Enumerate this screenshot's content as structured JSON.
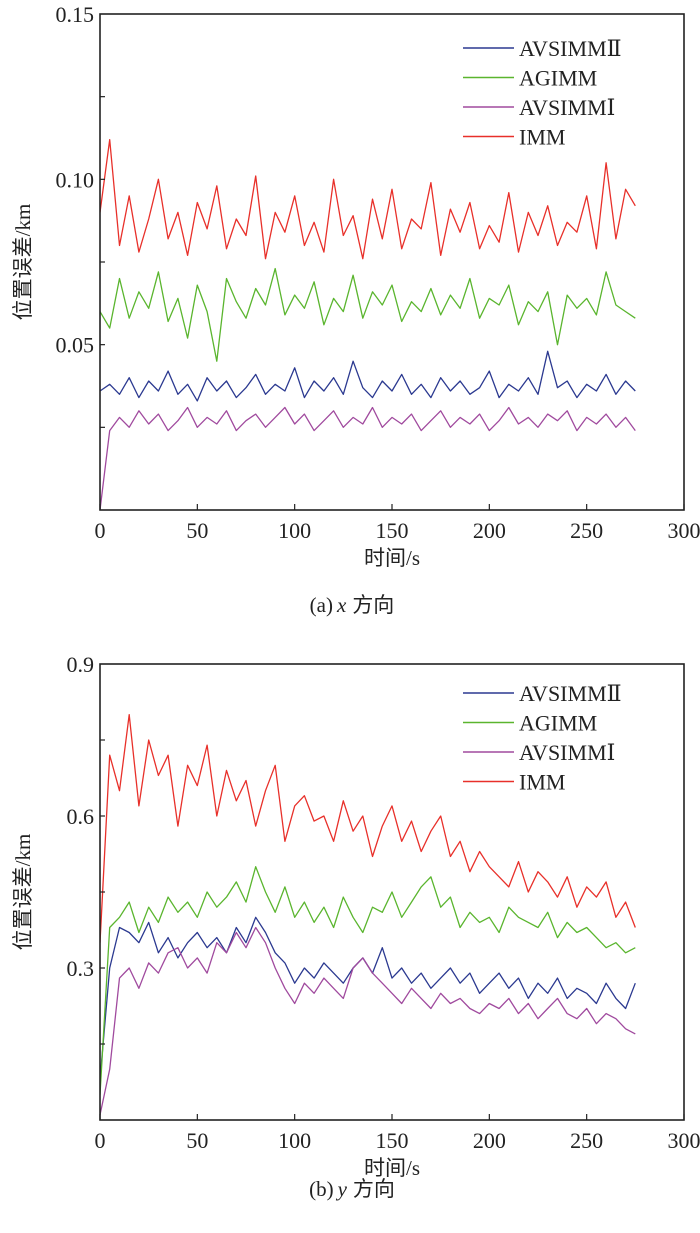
{
  "chart_data": [
    {
      "type": "line",
      "caption_prefix": "(a)",
      "caption_var": "x",
      "caption_suffix": "方向",
      "xlabel": "时间/s",
      "ylabel": "位置误差/km",
      "xlim": [
        0,
        300
      ],
      "ylim": [
        0,
        0.15
      ],
      "xticks": [
        0,
        50,
        100,
        150,
        200,
        250,
        300
      ],
      "xtick_labels": [
        "0",
        "50",
        "100",
        "150",
        "200",
        "250",
        "300"
      ],
      "yticks": [
        0.05,
        0.1,
        0.15
      ],
      "ytick_labels": [
        "0.05",
        "0.10",
        "0.15"
      ],
      "yminor_step": 0.025,
      "legend_position": "top-right",
      "x": [
        0,
        5,
        10,
        15,
        20,
        25,
        30,
        35,
        40,
        45,
        50,
        55,
        60,
        65,
        70,
        75,
        80,
        85,
        90,
        95,
        100,
        105,
        110,
        115,
        120,
        125,
        130,
        135,
        140,
        145,
        150,
        155,
        160,
        165,
        170,
        175,
        180,
        185,
        190,
        195,
        200,
        205,
        210,
        215,
        220,
        225,
        230,
        235,
        240,
        245,
        250,
        255,
        260,
        265,
        270,
        275
      ],
      "series": [
        {
          "name": "AVSIMMⅡ",
          "color": "#2b3990",
          "values": [
            0.036,
            0.038,
            0.035,
            0.04,
            0.034,
            0.039,
            0.036,
            0.042,
            0.035,
            0.038,
            0.033,
            0.04,
            0.036,
            0.039,
            0.034,
            0.037,
            0.041,
            0.035,
            0.038,
            0.036,
            0.043,
            0.034,
            0.039,
            0.036,
            0.04,
            0.035,
            0.045,
            0.037,
            0.034,
            0.039,
            0.036,
            0.041,
            0.035,
            0.038,
            0.034,
            0.04,
            0.036,
            0.039,
            0.035,
            0.037,
            0.042,
            0.034,
            0.038,
            0.036,
            0.04,
            0.035,
            0.048,
            0.037,
            0.039,
            0.034,
            0.038,
            0.036,
            0.041,
            0.035,
            0.039,
            0.036
          ]
        },
        {
          "name": "AGIMM",
          "color": "#5ab52e",
          "values": [
            0.06,
            0.055,
            0.07,
            0.058,
            0.066,
            0.061,
            0.072,
            0.057,
            0.064,
            0.052,
            0.068,
            0.06,
            0.045,
            0.07,
            0.063,
            0.058,
            0.067,
            0.062,
            0.073,
            0.059,
            0.065,
            0.061,
            0.069,
            0.056,
            0.064,
            0.06,
            0.071,
            0.058,
            0.066,
            0.062,
            0.068,
            0.057,
            0.063,
            0.06,
            0.067,
            0.059,
            0.065,
            0.061,
            0.07,
            0.058,
            0.064,
            0.062,
            0.068,
            0.056,
            0.063,
            0.06,
            0.066,
            0.05,
            0.065,
            0.061,
            0.064,
            0.059,
            0.072,
            0.062,
            0.06,
            0.058
          ]
        },
        {
          "name": "AVSIMMⅠ",
          "color": "#a04a9e",
          "values": [
            0.0,
            0.024,
            0.028,
            0.025,
            0.03,
            0.026,
            0.029,
            0.024,
            0.027,
            0.031,
            0.025,
            0.028,
            0.026,
            0.03,
            0.024,
            0.027,
            0.029,
            0.025,
            0.028,
            0.031,
            0.026,
            0.029,
            0.024,
            0.027,
            0.03,
            0.025,
            0.028,
            0.026,
            0.031,
            0.025,
            0.028,
            0.026,
            0.029,
            0.024,
            0.027,
            0.03,
            0.025,
            0.028,
            0.026,
            0.029,
            0.024,
            0.027,
            0.031,
            0.026,
            0.028,
            0.025,
            0.029,
            0.027,
            0.03,
            0.024,
            0.028,
            0.026,
            0.029,
            0.025,
            0.028,
            0.024
          ]
        },
        {
          "name": "IMM",
          "color": "#e8302a",
          "values": [
            0.09,
            0.112,
            0.08,
            0.095,
            0.078,
            0.088,
            0.1,
            0.082,
            0.09,
            0.077,
            0.093,
            0.085,
            0.098,
            0.079,
            0.088,
            0.083,
            0.101,
            0.076,
            0.09,
            0.084,
            0.095,
            0.08,
            0.087,
            0.078,
            0.1,
            0.083,
            0.089,
            0.076,
            0.094,
            0.082,
            0.097,
            0.079,
            0.088,
            0.085,
            0.099,
            0.077,
            0.091,
            0.084,
            0.093,
            0.079,
            0.086,
            0.081,
            0.096,
            0.078,
            0.09,
            0.083,
            0.092,
            0.08,
            0.087,
            0.084,
            0.095,
            0.079,
            0.105,
            0.082,
            0.097,
            0.092
          ]
        }
      ]
    },
    {
      "type": "line",
      "caption_prefix": "(b)",
      "caption_var": "y",
      "caption_suffix": "方向",
      "xlabel": "时间/s",
      "ylabel": "位置误差/km",
      "xlim": [
        0,
        300
      ],
      "ylim": [
        0,
        0.9
      ],
      "xticks": [
        0,
        50,
        100,
        150,
        200,
        250,
        300
      ],
      "xtick_labels": [
        "0",
        "50",
        "100",
        "150",
        "200",
        "250",
        "300"
      ],
      "yticks": [
        0.3,
        0.6,
        0.9
      ],
      "ytick_labels": [
        "0.3",
        "0.6",
        "0.9"
      ],
      "yminor_step": 0.15,
      "legend_position": "top-right",
      "x": [
        0,
        5,
        10,
        15,
        20,
        25,
        30,
        35,
        40,
        45,
        50,
        55,
        60,
        65,
        70,
        75,
        80,
        85,
        90,
        95,
        100,
        105,
        110,
        115,
        120,
        125,
        130,
        135,
        140,
        145,
        150,
        155,
        160,
        165,
        170,
        175,
        180,
        185,
        190,
        195,
        200,
        205,
        210,
        215,
        220,
        225,
        230,
        235,
        240,
        245,
        250,
        255,
        260,
        265,
        270,
        275
      ],
      "series": [
        {
          "name": "AVSIMMⅡ",
          "color": "#2b3990",
          "values": [
            0.08,
            0.3,
            0.38,
            0.37,
            0.35,
            0.39,
            0.33,
            0.36,
            0.32,
            0.35,
            0.37,
            0.34,
            0.36,
            0.33,
            0.38,
            0.35,
            0.4,
            0.37,
            0.33,
            0.31,
            0.27,
            0.3,
            0.28,
            0.31,
            0.29,
            0.27,
            0.3,
            0.32,
            0.29,
            0.34,
            0.28,
            0.3,
            0.27,
            0.29,
            0.26,
            0.28,
            0.3,
            0.27,
            0.29,
            0.25,
            0.27,
            0.29,
            0.26,
            0.28,
            0.24,
            0.27,
            0.25,
            0.28,
            0.24,
            0.26,
            0.25,
            0.23,
            0.27,
            0.24,
            0.22,
            0.27
          ]
        },
        {
          "name": "AGIMM",
          "color": "#5ab52e",
          "values": [
            0.05,
            0.38,
            0.4,
            0.43,
            0.37,
            0.42,
            0.39,
            0.44,
            0.41,
            0.43,
            0.4,
            0.45,
            0.42,
            0.44,
            0.47,
            0.43,
            0.5,
            0.45,
            0.41,
            0.46,
            0.4,
            0.43,
            0.39,
            0.42,
            0.38,
            0.44,
            0.4,
            0.37,
            0.42,
            0.41,
            0.45,
            0.4,
            0.43,
            0.46,
            0.48,
            0.42,
            0.44,
            0.38,
            0.41,
            0.39,
            0.4,
            0.37,
            0.42,
            0.4,
            0.39,
            0.38,
            0.41,
            0.36,
            0.39,
            0.37,
            0.38,
            0.36,
            0.34,
            0.35,
            0.33,
            0.34
          ]
        },
        {
          "name": "AVSIMMⅠ",
          "color": "#a04a9e",
          "values": [
            0.01,
            0.1,
            0.28,
            0.3,
            0.26,
            0.31,
            0.29,
            0.33,
            0.34,
            0.3,
            0.32,
            0.29,
            0.35,
            0.33,
            0.37,
            0.34,
            0.38,
            0.35,
            0.3,
            0.26,
            0.23,
            0.27,
            0.25,
            0.28,
            0.26,
            0.24,
            0.3,
            0.32,
            0.29,
            0.27,
            0.25,
            0.23,
            0.26,
            0.24,
            0.22,
            0.25,
            0.23,
            0.24,
            0.22,
            0.21,
            0.23,
            0.22,
            0.24,
            0.21,
            0.23,
            0.2,
            0.22,
            0.24,
            0.21,
            0.2,
            0.22,
            0.19,
            0.21,
            0.2,
            0.18,
            0.17
          ]
        },
        {
          "name": "IMM",
          "color": "#e8302a",
          "values": [
            0.35,
            0.72,
            0.65,
            0.8,
            0.62,
            0.75,
            0.68,
            0.72,
            0.58,
            0.7,
            0.66,
            0.74,
            0.6,
            0.69,
            0.63,
            0.67,
            0.58,
            0.65,
            0.7,
            0.55,
            0.62,
            0.64,
            0.59,
            0.6,
            0.55,
            0.63,
            0.57,
            0.6,
            0.52,
            0.58,
            0.62,
            0.55,
            0.59,
            0.53,
            0.57,
            0.6,
            0.52,
            0.55,
            0.49,
            0.53,
            0.5,
            0.48,
            0.46,
            0.51,
            0.45,
            0.49,
            0.47,
            0.44,
            0.48,
            0.42,
            0.46,
            0.44,
            0.47,
            0.4,
            0.43,
            0.38
          ]
        }
      ]
    }
  ]
}
